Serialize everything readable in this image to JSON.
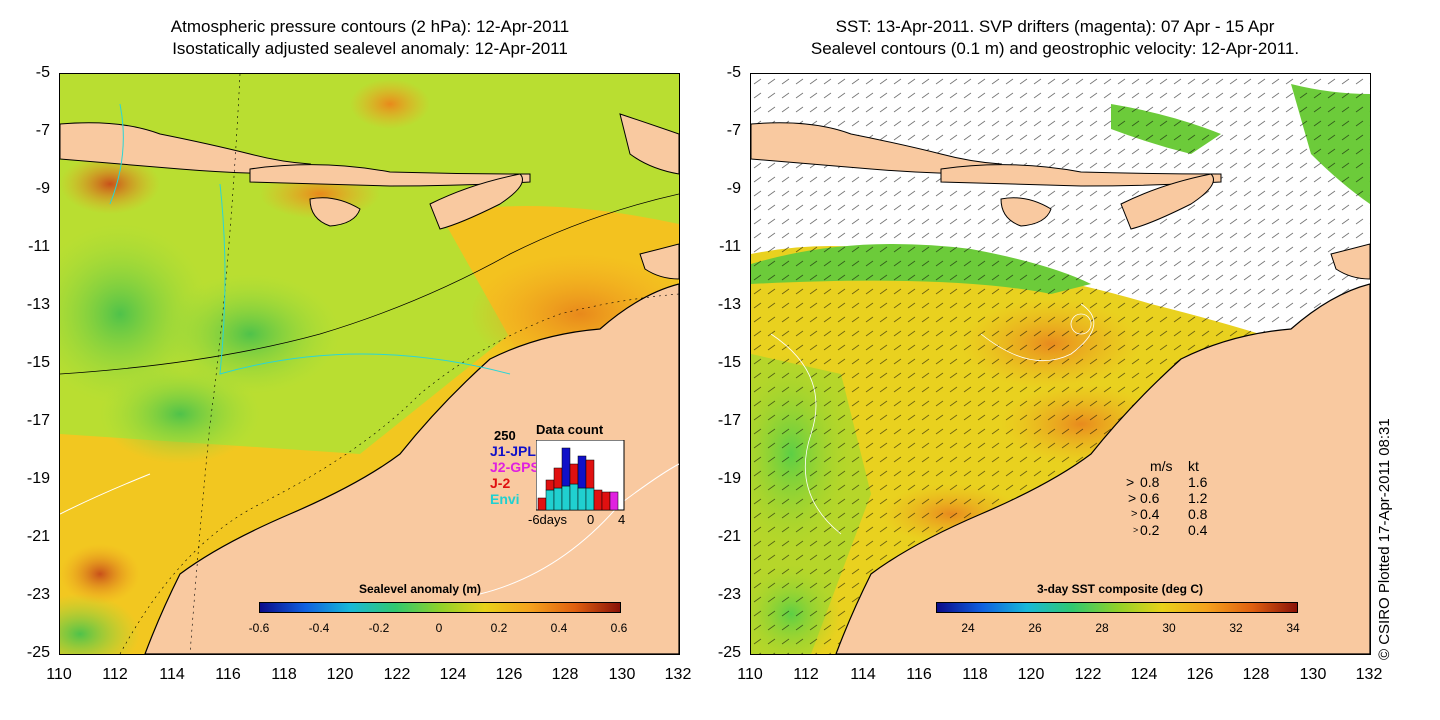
{
  "left_panel": {
    "title_line1": "Atmospheric pressure contours (2 hPa): 12-Apr-2011",
    "title_line2": "Isostatically adjusted sealevel anomaly: 12-Apr-2011",
    "lat_ticks": [
      "-5",
      "-7",
      "-9",
      "-11",
      "-13",
      "-15",
      "-17",
      "-19",
      "-21",
      "-23",
      "-25"
    ],
    "lon_ticks": [
      "110",
      "112",
      "114",
      "116",
      "118",
      "120",
      "122",
      "124",
      "126",
      "128",
      "130",
      "132"
    ],
    "colorbar": {
      "label": "Sealevel anomaly (m)",
      "ticks": [
        "-0.6",
        "-0.4",
        "-0.2",
        "0",
        "0.2",
        "0.4",
        "0.6"
      ]
    },
    "data_count": {
      "title": "Data count",
      "ymax": "250",
      "series": [
        {
          "name": "J1-JPL",
          "color": "#1010c8"
        },
        {
          "name": "J2-GPS",
          "color": "#e020e0"
        },
        {
          "name": "J-2",
          "color": "#e01010"
        },
        {
          "name": "Envi",
          "color": "#20d0d0"
        }
      ],
      "xlabel_left": "-6days",
      "xlabel_mid": "0",
      "xlabel_right": "4"
    }
  },
  "right_panel": {
    "title_line1": "SST: 13-Apr-2011. SVP drifters (magenta): 07 Apr - 15 Apr",
    "title_line2": "Sealevel contours (0.1 m) and geostrophic velocity: 12-Apr-2011.",
    "lat_ticks": [
      "-5",
      "-7",
      "-9",
      "-11",
      "-13",
      "-15",
      "-17",
      "-19",
      "-21",
      "-23",
      "-25"
    ],
    "lon_ticks": [
      "110",
      "112",
      "114",
      "116",
      "118",
      "120",
      "122",
      "124",
      "126",
      "128",
      "130",
      "132"
    ],
    "colorbar": {
      "label": "3-day SST composite (deg C)",
      "ticks": [
        "24",
        "26",
        "28",
        "30",
        "32",
        "34"
      ]
    },
    "velocity_legend": {
      "header_ms": "m/s",
      "header_kt": "kt",
      "rows": [
        {
          "ms": "0.8",
          "kt": "1.6"
        },
        {
          "ms": "0.6",
          "kt": "1.2"
        },
        {
          "ms": "0.4",
          "kt": "0.8"
        },
        {
          "ms": "0.2",
          "kt": "0.4"
        }
      ]
    }
  },
  "credit": "© CSIRO Plotted 17-Apr-2011 08:31",
  "colors": {
    "land": "#f9c9a0",
    "ocean_yellow": "#f7c51e",
    "ocean_orange": "#f5a623",
    "ocean_green": "#7ed321",
    "sst_yellow": "#f1d21b",
    "sst_orange": "#f0a020"
  }
}
